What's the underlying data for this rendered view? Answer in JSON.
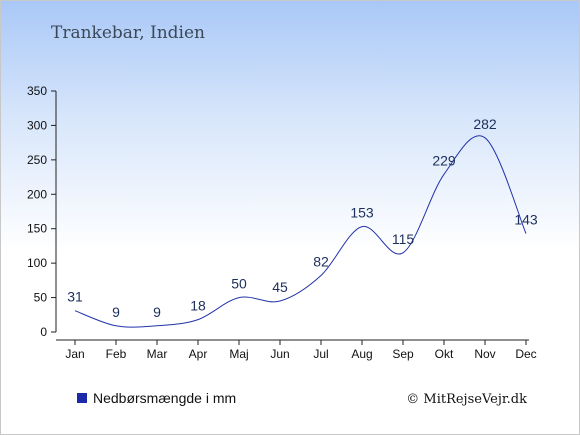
{
  "chart_data": {
    "type": "line",
    "title": "Trankebar, Indien",
    "categories": [
      "Jan",
      "Feb",
      "Mar",
      "Apr",
      "Maj",
      "Jun",
      "Jul",
      "Aug",
      "Sep",
      "Okt",
      "Nov",
      "Dec"
    ],
    "series": [
      {
        "name": "Nedbørsmængde i mm",
        "values": [
          31,
          9,
          9,
          18,
          50,
          45,
          82,
          153,
          115,
          229,
          282,
          143
        ],
        "color": "#2233aa"
      }
    ],
    "ylim": [
      0,
      350
    ],
    "yticks": [
      0,
      50,
      100,
      150,
      200,
      250,
      300,
      350
    ],
    "grid": false,
    "legend_position": "bottom-left"
  },
  "credit": "© MitRejseVejr.dk"
}
